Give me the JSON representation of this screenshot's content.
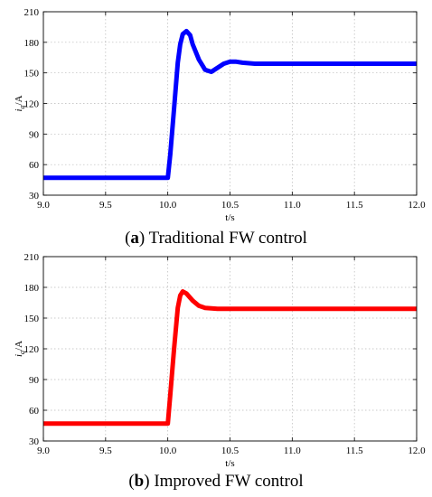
{
  "chart_data": [
    {
      "type": "line",
      "caption_letter": "a",
      "caption_text": "Traditional FW control",
      "xlabel": "t/s",
      "ylabel_main": "i",
      "ylabel_sub": "q",
      "ylabel_unit": "/A",
      "xlim": [
        9.0,
        12.0
      ],
      "ylim": [
        30,
        210
      ],
      "xticks": [
        "9.0",
        "9.5",
        "10.0",
        "10.5",
        "11.0",
        "11.5",
        "12.0"
      ],
      "yticks": [
        "30",
        "60",
        "90",
        "120",
        "150",
        "180",
        "210"
      ],
      "grid": true,
      "series": [
        {
          "color": "#0000ff",
          "x": [
            9.0,
            10.0,
            10.02,
            10.05,
            10.08,
            10.1,
            10.12,
            10.15,
            10.18,
            10.2,
            10.25,
            10.3,
            10.35,
            10.4,
            10.45,
            10.5,
            10.55,
            10.6,
            10.7,
            10.8,
            11.0,
            12.0
          ],
          "y": [
            47,
            47,
            70,
            115,
            160,
            178,
            188,
            191,
            187,
            178,
            163,
            153,
            151,
            155,
            159,
            161,
            161,
            160,
            159,
            159,
            159,
            159
          ]
        }
      ]
    },
    {
      "type": "line",
      "caption_letter": "b",
      "caption_text": "Improved FW control",
      "xlabel": "t/s",
      "ylabel_main": "i",
      "ylabel_sub": "q",
      "ylabel_unit": "/A",
      "xlim": [
        9.0,
        12.0
      ],
      "ylim": [
        30,
        210
      ],
      "xticks": [
        "9.0",
        "9.5",
        "10.0",
        "10.5",
        "11.0",
        "11.5",
        "12.0"
      ],
      "yticks": [
        "30",
        "60",
        "90",
        "120",
        "150",
        "180",
        "210"
      ],
      "grid": true,
      "series": [
        {
          "color": "#ff0000",
          "x": [
            9.0,
            10.0,
            10.02,
            10.05,
            10.08,
            10.1,
            10.12,
            10.15,
            10.2,
            10.25,
            10.3,
            10.4,
            10.5,
            12.0
          ],
          "y": [
            47,
            47,
            75,
            120,
            160,
            172,
            176,
            174,
            167,
            162,
            160,
            159,
            159,
            159
          ]
        }
      ]
    }
  ]
}
